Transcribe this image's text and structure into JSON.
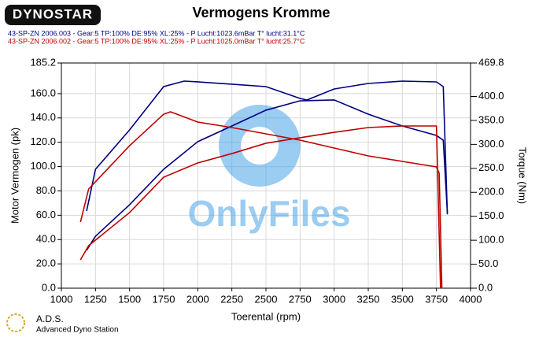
{
  "logo": "DYNOSTAR",
  "footer": {
    "name": "A.D.S.",
    "subtitle": "Advanced Dyno Station"
  },
  "watermark": "OnlyFiles",
  "chart_data": {
    "type": "line",
    "title": "Vermogens Kromme",
    "subtitle": [
      "43-SP-ZN 2006.003 - Gear:5 TP:100% DE:95% XL:25%   - P Lucht:1023.6mBar T° lucht:31.1°C",
      "43-SP-ZN 2006.002 - Gear:5 TP:100% DE:95% XL:25%   - P Lucht:1025.0mBar T° lucht:25.7°C"
    ],
    "subtitle_colors": [
      "#000080",
      "#c00000"
    ],
    "x_label": "Toerental (rpm)",
    "y_label": "Motor Vermogen (pk)",
    "y2_label": "Torque (Nm)",
    "xlim": [
      1000,
      4000
    ],
    "xticks": [
      1000,
      1250,
      1500,
      1750,
      2000,
      2250,
      2500,
      2750,
      3000,
      3250,
      3500,
      3750,
      4000
    ],
    "ylim": [
      0,
      185.2
    ],
    "yticks": [
      {
        "value": 0,
        "label": "0.0"
      },
      {
        "value": 20,
        "label": "20.0"
      },
      {
        "value": 40,
        "label": "40.0"
      },
      {
        "value": 60,
        "label": "60.0"
      },
      {
        "value": 80,
        "label": "80.0"
      },
      {
        "value": 100,
        "label": "100.0"
      },
      {
        "value": 120,
        "label": "120.0"
      },
      {
        "value": 140,
        "label": "140.0"
      },
      {
        "value": 160,
        "label": "160.0"
      },
      185.2
    ],
    "y2lim": [
      0,
      469.8
    ],
    "y2ticks": [
      {
        "value": 0,
        "label": "0.0"
      },
      {
        "value": 50,
        "label": "50.0"
      },
      {
        "value": 100,
        "label": "100.0"
      },
      {
        "value": 150,
        "label": "150.0"
      },
      {
        "value": 200,
        "label": "200.0"
      },
      {
        "value": 250,
        "label": "250.0"
      },
      {
        "value": 300,
        "label": "300.0"
      },
      {
        "value": 350,
        "label": "350.0"
      },
      {
        "value": 400,
        "label": "400.0"
      },
      469.8
    ],
    "grid": true,
    "series": [
      {
        "color": "#000080",
        "axis": "y2",
        "x": [
          1185,
          1250,
          1500,
          1750,
          1900,
          2000,
          2250,
          2500,
          2750,
          2800,
          3000,
          3250,
          3500,
          3750,
          3800,
          3830
        ],
        "values": [
          161.0,
          248.0,
          330.2,
          420.5,
          432.0,
          430.4,
          425.5,
          420.5,
          395.9,
          392.6,
          415.6,
          427.1,
          432.0,
          430.4,
          420.5,
          154.0
        ]
      },
      {
        "color": "#000080",
        "axis": "y",
        "x": [
          1185,
          1250,
          1500,
          1750,
          2000,
          2250,
          2500,
          2750,
          3000,
          3250,
          3500,
          3750,
          3800,
          3830
        ],
        "values": [
          31.1,
          42.7,
          68.6,
          97.8,
          120.5,
          133.4,
          146.4,
          154.1,
          154.8,
          143.1,
          133.4,
          125.6,
          121.7,
          62.2
        ]
      },
      {
        "color": "#c00000",
        "axis": "y2",
        "x": [
          1140,
          1200,
          1500,
          1750,
          1800,
          2000,
          2250,
          2500,
          2750,
          3000,
          3250,
          3500,
          3750,
          3770,
          3790
        ],
        "values": [
          138.0,
          207.0,
          297.3,
          363.0,
          368.0,
          346.6,
          335.1,
          322.0,
          308.8,
          292.4,
          276.0,
          264.5,
          253.0,
          239.8,
          0
        ]
      },
      {
        "color": "#c00000",
        "axis": "y",
        "x": [
          1140,
          1200,
          1500,
          1750,
          2000,
          2250,
          2500,
          2750,
          3000,
          3250,
          3500,
          3750,
          3780
        ],
        "values": [
          23.3,
          35.0,
          62.2,
          91.3,
          103.0,
          110.7,
          119.2,
          123.7,
          128.2,
          132.1,
          133.4,
          133.4,
          0
        ]
      }
    ]
  }
}
